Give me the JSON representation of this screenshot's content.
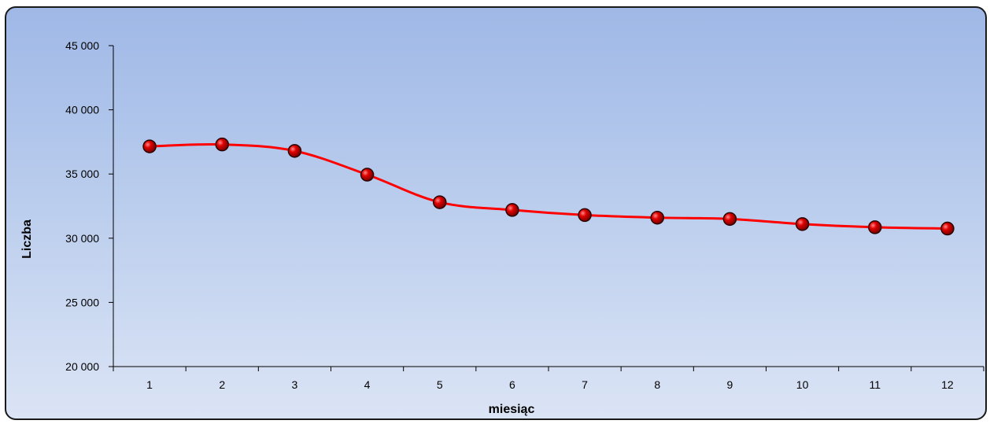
{
  "chart_data": {
    "type": "line",
    "title": "",
    "xlabel": "miesiąc",
    "ylabel": "Liczba",
    "categories": [
      "1",
      "2",
      "3",
      "4",
      "5",
      "6",
      "7",
      "8",
      "9",
      "10",
      "11",
      "12"
    ],
    "y_ticks": [
      "20 000",
      "25 000",
      "30 000",
      "35 000",
      "40 000",
      "45 000"
    ],
    "ylim": [
      20000,
      45000
    ],
    "grid": false,
    "legend": "none",
    "smooth": true,
    "series": [
      {
        "values": [
          37150,
          37300,
          36800,
          34950,
          32800,
          32200,
          31800,
          31600,
          31500,
          31100,
          30850,
          30750
        ],
        "color": "#ff0000",
        "marker_color": "#cc0000"
      }
    ],
    "colors": {
      "background_top": "#9fb8e6",
      "background_bottom": "#dbe4f5",
      "axis": "#000000",
      "line": "#ff0000"
    }
  }
}
